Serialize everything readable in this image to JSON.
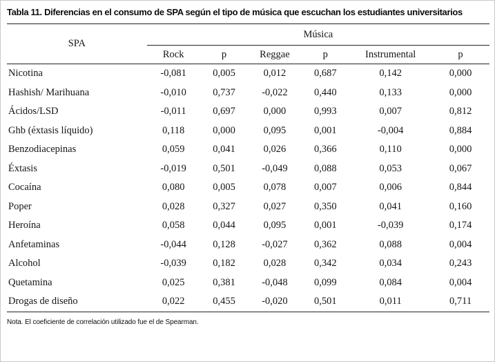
{
  "title": {
    "label": "Tabla 11.",
    "text": "Diferencias en el consumo de SPA según el tipo de música que escuchan los estudiantes universitarios"
  },
  "table": {
    "col1_header": "SPA",
    "group_header": "Música",
    "subheaders": [
      "Rock",
      "p",
      "Reggae",
      "p",
      "Instrumental",
      "p"
    ],
    "rows": [
      {
        "name": "Nicotina",
        "values": [
          "-0,081",
          "0,005",
          "0,012",
          "0,687",
          "0,142",
          "0,000"
        ]
      },
      {
        "name": "Hashish/ Marihuana",
        "values": [
          "-0,010",
          "0,737",
          "-0,022",
          "0,440",
          "0,133",
          "0,000"
        ]
      },
      {
        "name": "Ácidos/LSD",
        "values": [
          "-0,011",
          "0,697",
          "0,000",
          "0,993",
          "0,007",
          "0,812"
        ]
      },
      {
        "name": "Ghb (éxtasis líquido)",
        "values": [
          "0,118",
          "0,000",
          "0,095",
          "0,001",
          "-0,004",
          "0,884"
        ]
      },
      {
        "name": "Benzodiacepinas",
        "values": [
          "0,059",
          "0,041",
          "0,026",
          "0,366",
          "0,110",
          "0,000"
        ]
      },
      {
        "name": "Éxtasis",
        "values": [
          "-0,019",
          "0,501",
          "-0,049",
          "0,088",
          "0,053",
          "0,067"
        ]
      },
      {
        "name": "Cocaína",
        "values": [
          "0,080",
          "0,005",
          "0,078",
          "0,007",
          "0,006",
          "0,844"
        ]
      },
      {
        "name": "Poper",
        "values": [
          "0,028",
          "0,327",
          "0,027",
          "0,350",
          "0,041",
          "0,160"
        ]
      },
      {
        "name": "Heroína",
        "values": [
          "0,058",
          "0,044",
          "0,095",
          "0,001",
          "-0,039",
          "0,174"
        ]
      },
      {
        "name": "Anfetaminas",
        "values": [
          "-0,044",
          "0,128",
          "-0,027",
          "0,362",
          "0,088",
          "0,004"
        ]
      },
      {
        "name": "Alcohol",
        "values": [
          "-0,039",
          "0,182",
          "0,028",
          "0,342",
          "0,034",
          "0,243"
        ]
      },
      {
        "name": "Quetamina",
        "values": [
          "0,025",
          "0,381",
          "-0,048",
          "0,099",
          "0,084",
          "0,004"
        ]
      },
      {
        "name": "Drogas de diseño",
        "values": [
          "0,022",
          "0,455",
          "-0,020",
          "0,501",
          "0,011",
          "0,711"
        ]
      }
    ]
  },
  "note": "Nota. El coeficiente de correlación utilizado fue el de Spearman."
}
